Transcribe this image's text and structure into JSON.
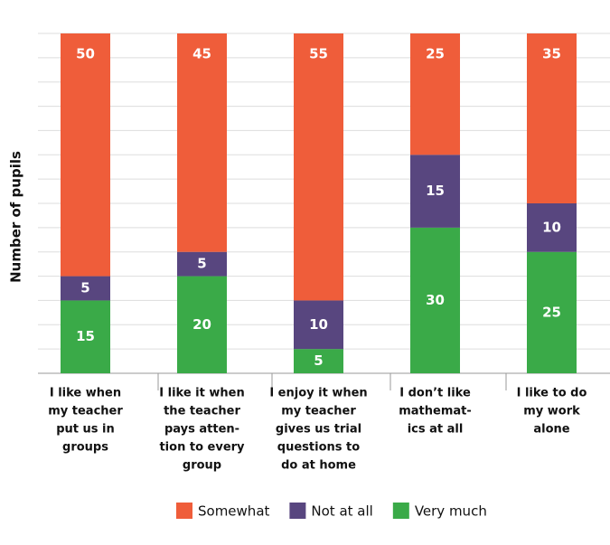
{
  "chart_data": {
    "type": "stacked_bar",
    "y_label": "Number of pupils",
    "categories": [
      [
        "I like when",
        "my teacher",
        "put us in",
        "groups"
      ],
      [
        "I like it when",
        "the teacher",
        "pays atten-",
        "tion to every",
        "group"
      ],
      [
        "I enjoy it when",
        "my teacher",
        "gives us trial",
        "questions to",
        "do at home"
      ],
      [
        "I don’t like",
        "mathemat-",
        "ics at all"
      ],
      [
        "I like to do",
        "my work",
        "alone"
      ]
    ],
    "series": [
      {
        "name": "Somewhat",
        "color": "#ef5d3a",
        "values": [
          50,
          45,
          55,
          25,
          35
        ]
      },
      {
        "name": "Not at all",
        "color": "#58467f",
        "values": [
          5,
          5,
          10,
          15,
          10
        ]
      },
      {
        "name": "Very much",
        "color": "#3aaa48",
        "values": [
          15,
          20,
          5,
          30,
          25
        ]
      }
    ],
    "ylim": [
      0,
      70
    ],
    "yticks": [
      0,
      5,
      10,
      15,
      20,
      25,
      30,
      35,
      40,
      45,
      50,
      55,
      60,
      65,
      70
    ],
    "grid": true,
    "legend": "bottom"
  }
}
